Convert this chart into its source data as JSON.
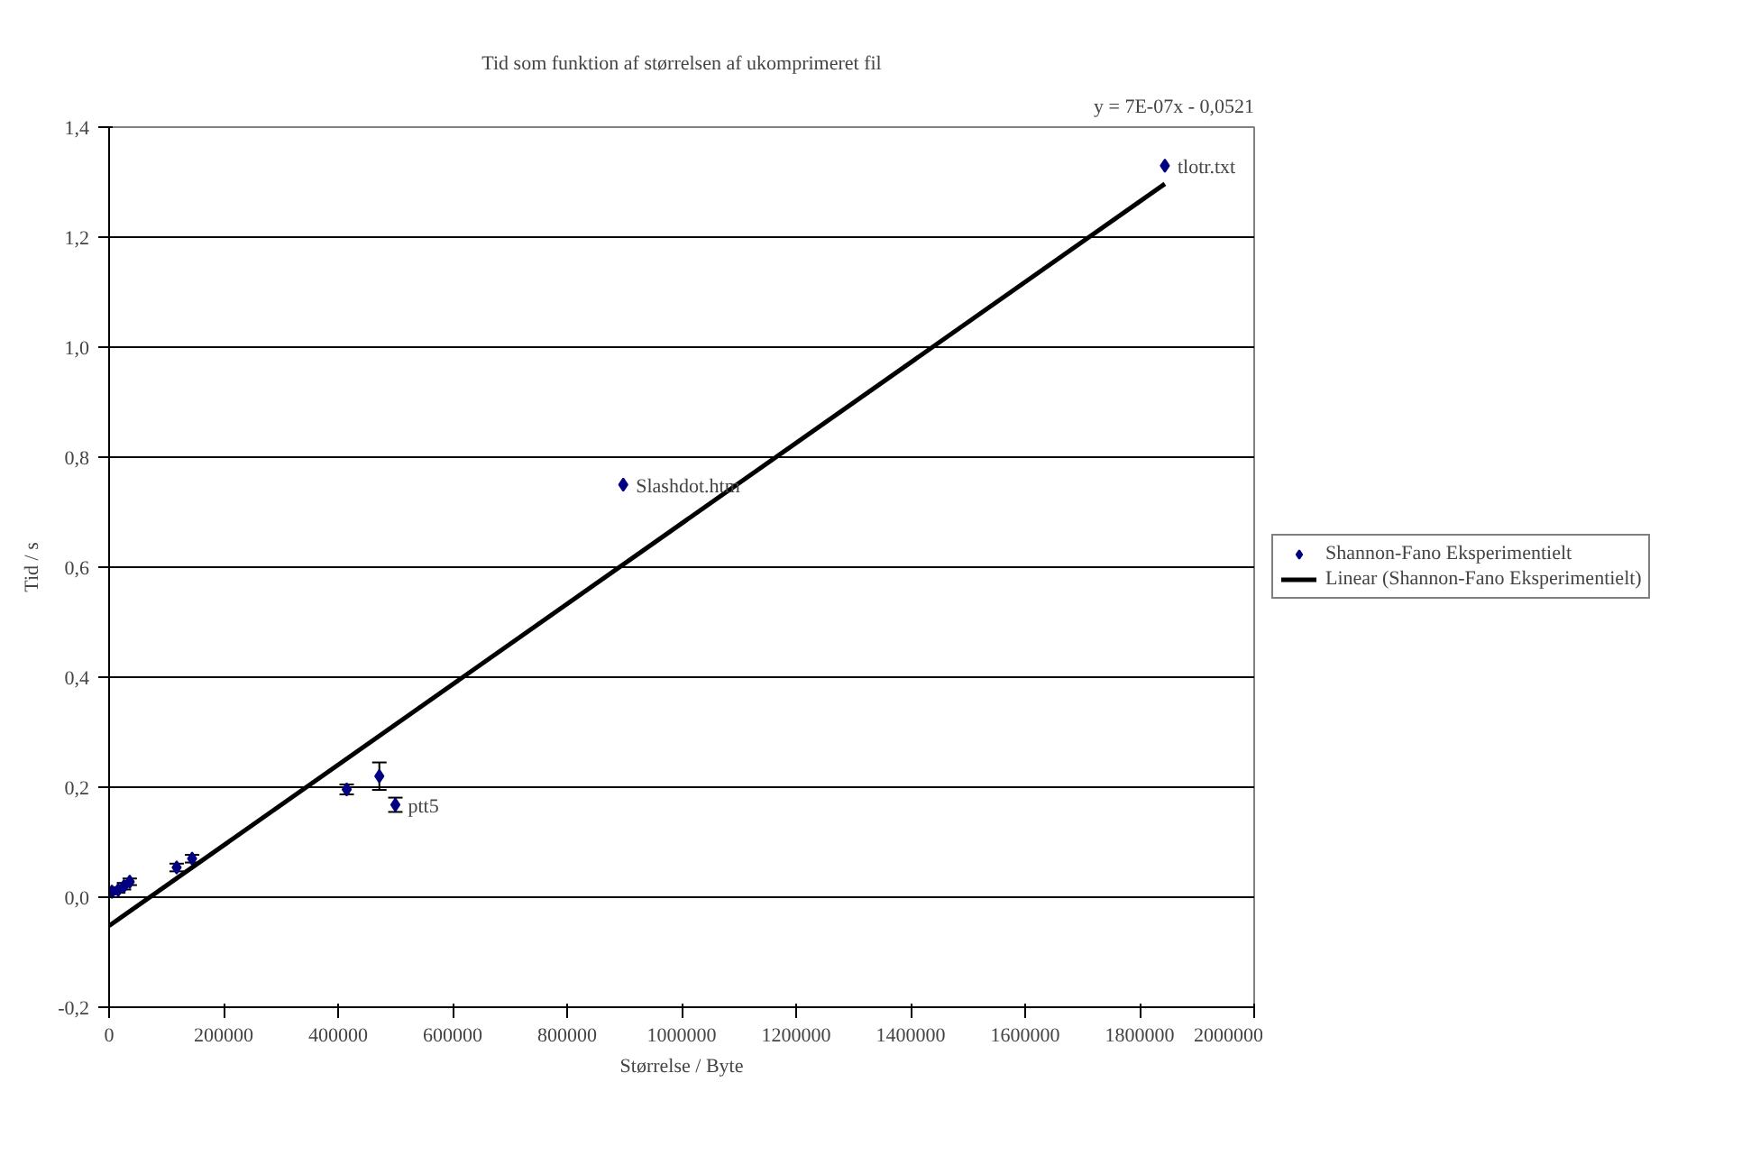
{
  "chart_data": {
    "type": "scatter",
    "title": "Tid som funktion af størrelsen af ukomprimeret fil",
    "xlabel": "Størrelse / Byte",
    "ylabel": "Tid / s",
    "annotations": [
      "y = 7E-07x - 0,0521",
      {
        "text": "tlotr.txt",
        "x": 1844000,
        "y": 1.33
      },
      {
        "text": "Slashdot.htm",
        "x": 898000,
        "y": 0.75
      },
      {
        "text": "ptt5",
        "x": 500000,
        "y": 0.168
      }
    ],
    "series": [
      {
        "name": "Shannon-Fano Eksperimentielt",
        "color": "#000080",
        "marker": "diamond",
        "x": [
          5000,
          16000,
          26000,
          36000,
          118000,
          145000,
          415000,
          472000,
          500000,
          898000,
          1844000
        ],
        "values": [
          0.01,
          0.013,
          0.02,
          0.028,
          0.054,
          0.07,
          0.196,
          0.22,
          0.168,
          0.75,
          1.33
        ],
        "errors": [
          0.005,
          0.005,
          0.006,
          0.006,
          0.007,
          0.007,
          0.009,
          0.025,
          0.013,
          null,
          null
        ]
      },
      {
        "name": "Linear (Shannon-Fano Eksperimentielt)",
        "color": "#000000",
        "type": "line",
        "marker": "none",
        "x": [
          0,
          1844000
        ],
        "values": [
          -0.052,
          1.297
        ]
      }
    ],
    "xlim": [
      0,
      2000000
    ],
    "xticks": [
      0,
      200000,
      400000,
      600000,
      800000,
      1000000,
      1200000,
      1400000,
      1600000,
      1800000,
      2000000
    ],
    "ylim": [
      -0.2,
      1.4
    ],
    "yticks": [
      {
        "value": -0.2,
        "label": "-0,2"
      },
      {
        "value": 0,
        "label": "0,0"
      },
      {
        "value": 0.2,
        "label": "0,2"
      },
      {
        "value": 0.4,
        "label": "0,4"
      },
      {
        "value": 0.6,
        "label": "0,6"
      },
      {
        "value": 0.8,
        "label": "0,8"
      },
      {
        "value": 1.0,
        "label": "1,0"
      },
      {
        "value": 1.2,
        "label": "1,2"
      },
      {
        "value": 1.4,
        "label": "1,4"
      }
    ],
    "grid": "y",
    "legend": "right"
  }
}
